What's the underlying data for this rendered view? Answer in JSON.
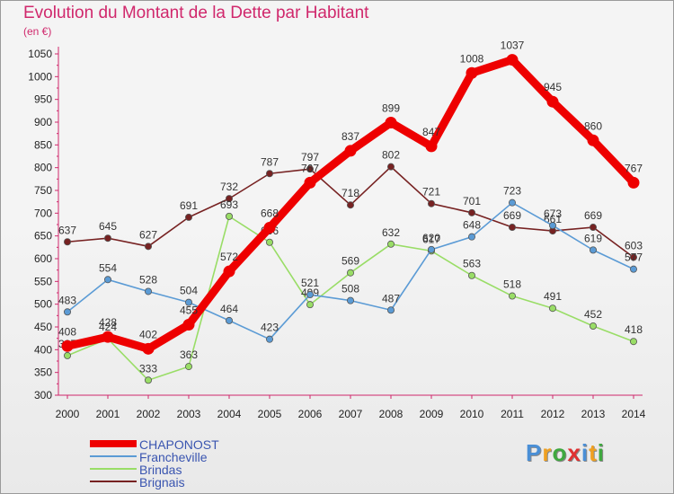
{
  "title": "Evolution du Montant de la Dette par Habitant",
  "unit": "(en €)",
  "brand": {
    "letters": [
      "P",
      "r",
      "o",
      "x",
      "i",
      "t",
      "i"
    ],
    "colors": [
      "#4a8fd6",
      "#f0a020",
      "#3fa83f",
      "#e03030",
      "#4a8fd6",
      "#f0a020",
      "#3fa83f"
    ]
  },
  "chart_data": {
    "type": "line",
    "x": [
      "2000",
      "2001",
      "2002",
      "2003",
      "2004",
      "2005",
      "2006",
      "2007",
      "2008",
      "2009",
      "2010",
      "2011",
      "2012",
      "2013",
      "2014"
    ],
    "ylim": [
      300,
      1050
    ],
    "yticks": [
      300,
      350,
      400,
      450,
      500,
      550,
      600,
      650,
      700,
      750,
      800,
      850,
      900,
      950,
      1000,
      1050
    ],
    "legend_position": "bottom-left",
    "grid": false,
    "series": [
      {
        "name": "CHAPONOST",
        "color": "#ee0000",
        "values": [
          408,
          428,
          402,
          455,
          572,
          668,
          767,
          837,
          899,
          847,
          1008,
          1037,
          945,
          860,
          767
        ]
      },
      {
        "name": "Francheville",
        "color": "#5b9bd5",
        "values": [
          483,
          554,
          528,
          504,
          464,
          423,
          521,
          508,
          487,
          620,
          648,
          723,
          673,
          619,
          577
        ]
      },
      {
        "name": "Brindas",
        "color": "#99dd66",
        "values": [
          387,
          424,
          333,
          363,
          693,
          636,
          499,
          569,
          632,
          617,
          563,
          518,
          491,
          452,
          418
        ]
      },
      {
        "name": "Brignais",
        "color": "#772222",
        "values": [
          637,
          645,
          627,
          691,
          732,
          787,
          797,
          718,
          802,
          721,
          701,
          669,
          661,
          669,
          603
        ]
      }
    ]
  }
}
